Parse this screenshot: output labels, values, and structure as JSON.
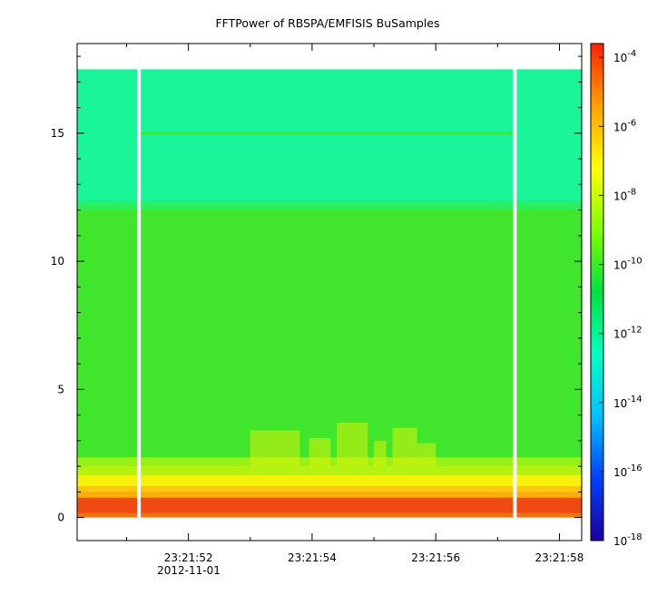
{
  "chart_data": {
    "type": "heatmap",
    "title": "FFTPower of RBSPA/EMFISIS  BuSamples",
    "xlabel": "",
    "ylabel": "",
    "date_label": "2012-11-01",
    "x_ticks": [
      {
        "t": 52,
        "label": "23:21:52"
      },
      {
        "t": 54,
        "label": "23:21:54"
      },
      {
        "t": 56,
        "label": "23:21:56"
      },
      {
        "t": 58,
        "label": "23:21:58"
      }
    ],
    "xlim": [
      50.2,
      58.36
    ],
    "y_ticks": [
      0,
      5,
      10,
      15
    ],
    "ylim": [
      -0.9,
      18.5
    ],
    "data_top": 17.5,
    "data_bottom": 0,
    "data_gaps": [
      51.2,
      57.28
    ],
    "colorbar": {
      "scale": "log",
      "range": [
        -18,
        -3.6
      ],
      "tick_exponents": [
        -4,
        -6,
        -8,
        -10,
        -12,
        -14,
        -16,
        -18
      ],
      "tick_base": "10",
      "colormap": [
        "#1a00a0",
        "#0040ff",
        "#00c0ff",
        "#00ffc0",
        "#00e040",
        "#80ff00",
        "#ffff00",
        "#ffa000",
        "#ff2000"
      ]
    },
    "spectrum_bands": [
      {
        "y0": 12.2,
        "y1": 17.5,
        "level": "1e-12",
        "color": "#1af59a"
      },
      {
        "y0": 2.0,
        "y1": 12.2,
        "level": "1e-10",
        "color": "#3fe62c"
      },
      {
        "y0": 1.0,
        "y1": 2.0,
        "level": "1e-8",
        "color": "#f7f20a"
      },
      {
        "y0": 0.0,
        "y1": 1.0,
        "level": "1e-6",
        "color": "#ef4a12"
      }
    ],
    "line_feature": {
      "frequency": 15.0,
      "level": "1e-10"
    }
  }
}
